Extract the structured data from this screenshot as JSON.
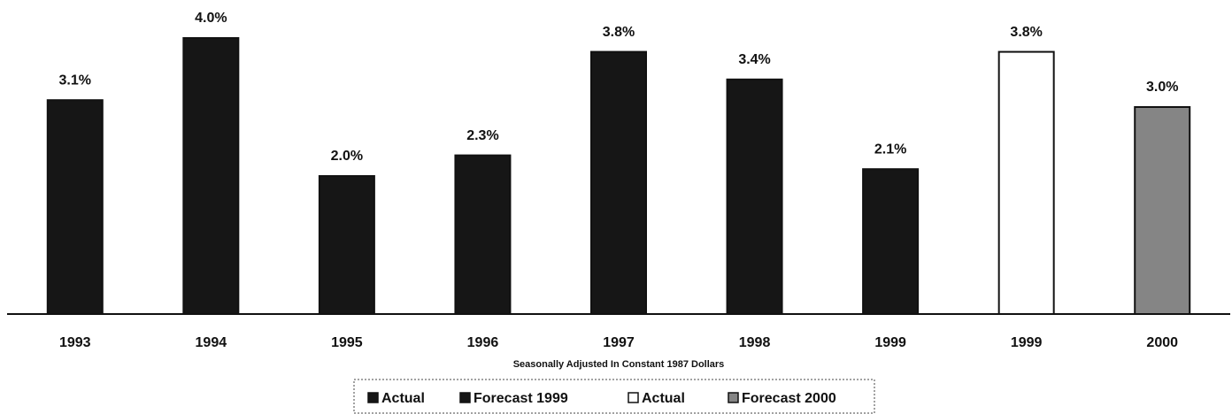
{
  "chart_data": {
    "type": "bar",
    "x_label": "Seasonally Adjusted In Constant 1987 Dollars",
    "categories": [
      "1993",
      "1994",
      "1995",
      "1996",
      "1997",
      "1998",
      "1999",
      "1999",
      "2000"
    ],
    "ylim": [
      0,
      4
    ],
    "series": [
      {
        "name": "Actual",
        "color": "#161616",
        "values": [
          3.1,
          4.0,
          2.0,
          2.3,
          3.8,
          3.4,
          null,
          null,
          null
        ],
        "value_labels": [
          "3.1%",
          "4.0%",
          "2.0%",
          "2.3%",
          "3.8%",
          "3.4%",
          null,
          null,
          null
        ]
      },
      {
        "name": "Forecast 1999",
        "color": "#161616",
        "values": [
          null,
          null,
          null,
          null,
          null,
          null,
          2.1,
          null,
          null
        ],
        "value_labels": [
          null,
          null,
          null,
          null,
          null,
          null,
          "2.1%",
          null,
          null
        ]
      },
      {
        "name": "Actual",
        "color": "#ffffff",
        "values": [
          null,
          null,
          null,
          null,
          null,
          null,
          null,
          3.8,
          null
        ],
        "value_labels": [
          null,
          null,
          null,
          null,
          null,
          null,
          null,
          "3.8%",
          null
        ]
      },
      {
        "name": "Forecast 2000",
        "color": "#858585",
        "values": [
          null,
          null,
          null,
          null,
          null,
          null,
          null,
          null,
          3.0
        ],
        "value_labels": [
          null,
          null,
          null,
          null,
          null,
          null,
          null,
          null,
          "3.0%"
        ]
      }
    ]
  }
}
